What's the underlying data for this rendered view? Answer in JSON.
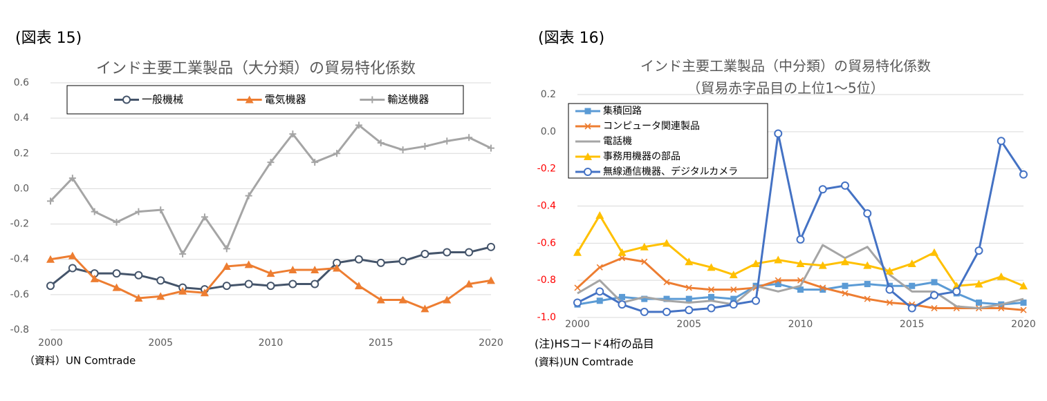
{
  "chart_data": [
    {
      "type": "line",
      "figure_label": "(図表 15)",
      "title": "インド主要工業製品（大分類）の貿易特化係数",
      "source": "（資料）UN Comtrade",
      "x": [
        2000,
        2001,
        2002,
        2003,
        2004,
        2005,
        2006,
        2007,
        2008,
        2009,
        2010,
        2011,
        2012,
        2013,
        2014,
        2015,
        2016,
        2017,
        2018,
        2019,
        2020
      ],
      "xlim": [
        2000,
        2020
      ],
      "xticks": [
        2000,
        2005,
        2010,
        2015,
        2020
      ],
      "ylim": [
        -0.8,
        0.6
      ],
      "yticks": [
        0.6,
        0.4,
        0.2,
        {
          "value": 0,
          "label": "0.0"
        },
        -0.2,
        -0.4,
        -0.6,
        -0.8
      ],
      "grid": true,
      "legend": "top",
      "series": [
        {
          "name": "一般機械",
          "color": "#44546a",
          "marker": "circle",
          "values": [
            -0.55,
            -0.45,
            -0.48,
            -0.48,
            -0.49,
            -0.52,
            -0.56,
            -0.57,
            -0.55,
            -0.54,
            -0.55,
            -0.54,
            -0.54,
            -0.42,
            -0.4,
            -0.42,
            -0.41,
            -0.37,
            -0.36,
            -0.36,
            -0.33
          ]
        },
        {
          "name": "電気機器",
          "color": "#ed7d31",
          "marker": "triangle",
          "values": [
            -0.4,
            -0.38,
            -0.51,
            -0.56,
            -0.62,
            -0.61,
            -0.58,
            -0.59,
            -0.44,
            -0.43,
            -0.48,
            -0.46,
            -0.46,
            -0.45,
            -0.55,
            -0.63,
            -0.63,
            -0.68,
            -0.63,
            -0.54,
            -0.52
          ]
        },
        {
          "name": "輸送機器",
          "color": "#a5a5a5",
          "marker": "plus",
          "values": [
            -0.07,
            0.06,
            -0.13,
            -0.19,
            -0.13,
            -0.12,
            -0.37,
            -0.16,
            -0.34,
            -0.04,
            0.15,
            0.31,
            0.15,
            0.2,
            0.36,
            0.26,
            0.22,
            0.24,
            0.27,
            0.29,
            0.23
          ]
        }
      ]
    },
    {
      "type": "line",
      "figure_label": "(図表 16)",
      "title": "インド主要工業製品（中分類）の貿易特化係数",
      "subtitle": "（貿易赤字品目の上位1～5位）",
      "note": "(注)HSコード4桁の品目",
      "source": "(資料)UN Comtrade",
      "x": [
        2000,
        2001,
        2002,
        2003,
        2004,
        2005,
        2006,
        2007,
        2008,
        2009,
        2010,
        2011,
        2012,
        2013,
        2014,
        2015,
        2016,
        2017,
        2018,
        2019,
        2020
      ],
      "xlim": [
        2000,
        2020
      ],
      "xticks": [
        2000,
        2005,
        2010,
        2015,
        2020
      ],
      "ylim": [
        -1,
        0.2
      ],
      "yticks": [
        0.2,
        {
          "value": 0,
          "label": "0.0"
        },
        -0.2,
        -0.4,
        -0.6,
        -0.8,
        {
          "value": -1,
          "label": "-1.0"
        }
      ],
      "grid": true,
      "legend": "upper left",
      "negative_tick_color": "#ff0000",
      "series": [
        {
          "name": "集積回路",
          "color": "#5b9bd5",
          "marker": "square",
          "values": [
            -0.93,
            -0.91,
            -0.89,
            -0.9,
            -0.9,
            -0.9,
            -0.89,
            -0.9,
            -0.83,
            -0.82,
            -0.85,
            -0.85,
            -0.83,
            -0.82,
            -0.83,
            -0.83,
            -0.81,
            -0.87,
            -0.92,
            -0.93,
            -0.92
          ]
        },
        {
          "name": "コンピュータ関連製品",
          "color": "#ed7d31",
          "marker": "x",
          "values": [
            -0.84,
            -0.73,
            -0.68,
            -0.7,
            -0.81,
            -0.84,
            -0.85,
            -0.85,
            -0.84,
            -0.8,
            -0.8,
            -0.84,
            -0.87,
            -0.9,
            -0.92,
            -0.93,
            -0.95,
            -0.95,
            -0.95,
            -0.95,
            -0.96
          ]
        },
        {
          "name": "電話機",
          "color": "#a5a5a5",
          "marker": "none",
          "values": [
            -0.87,
            -0.8,
            -0.92,
            -0.89,
            -0.91,
            -0.92,
            -0.91,
            -0.93,
            -0.83,
            -0.86,
            -0.83,
            -0.61,
            -0.68,
            -0.62,
            -0.77,
            -0.86,
            -0.86,
            -0.94,
            -0.95,
            -0.93,
            -0.9
          ]
        },
        {
          "name": "事務用機器の部品",
          "color": "#ffc000",
          "marker": "triangle",
          "values": [
            -0.65,
            -0.45,
            -0.65,
            -0.62,
            -0.6,
            -0.7,
            -0.73,
            -0.77,
            -0.71,
            -0.69,
            -0.71,
            -0.72,
            -0.7,
            -0.72,
            -0.75,
            -0.71,
            -0.65,
            -0.83,
            -0.82,
            -0.78,
            -0.83
          ]
        },
        {
          "name": "無線通信機器、デジタルカメラ",
          "color": "#4472c4",
          "marker": "circle",
          "values": [
            -0.92,
            -0.86,
            -0.93,
            -0.97,
            -0.97,
            -0.96,
            -0.95,
            -0.93,
            -0.91,
            -0.01,
            -0.58,
            -0.31,
            -0.29,
            -0.44,
            -0.85,
            -0.95,
            -0.88,
            -0.86,
            -0.64,
            -0.05,
            -0.23
          ]
        }
      ]
    }
  ]
}
